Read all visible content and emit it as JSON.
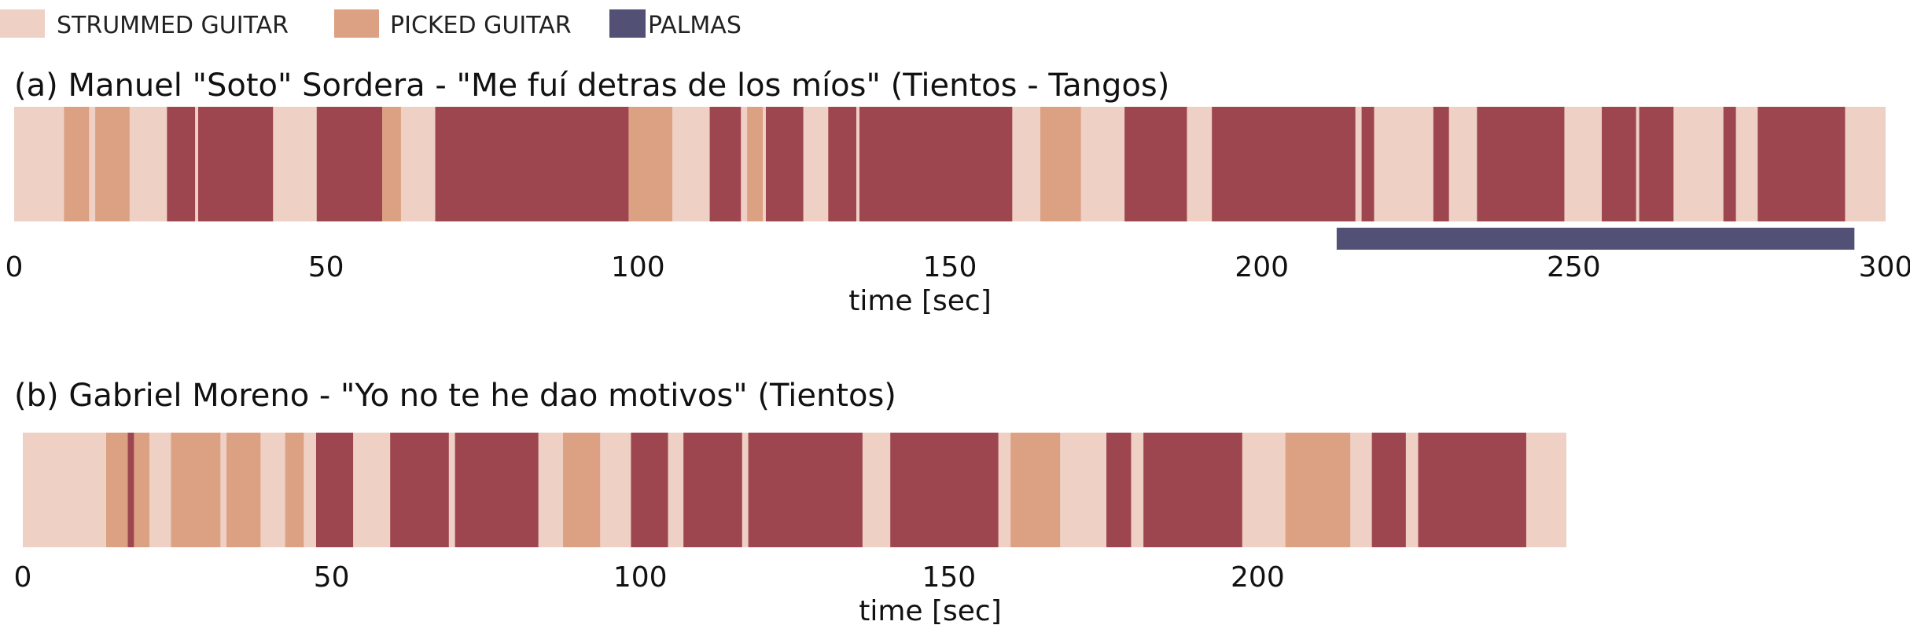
{
  "colors": {
    "strummed": "#EED0C4",
    "picked": "#DCA082",
    "sung": "#9E4650",
    "palmas": "#535075"
  },
  "legend": [
    {
      "key": "strummed",
      "label": "STRUMMED GUITAR"
    },
    {
      "key": "picked",
      "label": "PICKED GUITAR"
    },
    {
      "key": "palmas",
      "label": "PALMAS"
    }
  ],
  "chart_data": [
    {
      "type": "timeline",
      "title": "(a) Manuel \"Soto\" Sordera - \"Me fuí detras de los míos\" (Tientos - Tangos)",
      "xlabel": "time [sec]",
      "xlim": [
        0,
        300
      ],
      "xticks": [
        0,
        50,
        100,
        150,
        200,
        250,
        300
      ],
      "background": {
        "type": "strummed",
        "start": 0,
        "end": 300
      },
      "segments": [
        {
          "type": "picked",
          "start": 8,
          "end": 12
        },
        {
          "type": "picked",
          "start": 13,
          "end": 18.5
        },
        {
          "type": "sung",
          "start": 24.5,
          "end": 29
        },
        {
          "type": "sung",
          "start": 29.5,
          "end": 41.5
        },
        {
          "type": "sung",
          "start": 48.5,
          "end": 59
        },
        {
          "type": "picked",
          "start": 59,
          "end": 62
        },
        {
          "type": "sung",
          "start": 67.5,
          "end": 98.5
        },
        {
          "type": "picked",
          "start": 98.5,
          "end": 105.5
        },
        {
          "type": "sung",
          "start": 111.5,
          "end": 116.5
        },
        {
          "type": "picked",
          "start": 117.5,
          "end": 120
        },
        {
          "type": "sung",
          "start": 120.5,
          "end": 126.5
        },
        {
          "type": "sung",
          "start": 130.5,
          "end": 135
        },
        {
          "type": "sung",
          "start": 135.5,
          "end": 160
        },
        {
          "type": "picked",
          "start": 164.5,
          "end": 171
        },
        {
          "type": "sung",
          "start": 178,
          "end": 188
        },
        {
          "type": "sung",
          "start": 192,
          "end": 215
        },
        {
          "type": "sung",
          "start": 216,
          "end": 218
        },
        {
          "type": "sung",
          "start": 227.5,
          "end": 230
        },
        {
          "type": "sung",
          "start": 234.5,
          "end": 248.5
        },
        {
          "type": "sung",
          "start": 254.5,
          "end": 260
        },
        {
          "type": "sung",
          "start": 260.5,
          "end": 266
        },
        {
          "type": "sung",
          "start": 274,
          "end": 276
        },
        {
          "type": "sung",
          "start": 279.5,
          "end": 293.5
        }
      ],
      "palmas": [
        {
          "start": 212,
          "end": 295
        }
      ]
    },
    {
      "type": "timeline",
      "title": "(b) Gabriel Moreno - \"Yo no te he dao motivos\" (Tientos)",
      "xlabel": "time [sec]",
      "xlim": [
        0,
        250
      ],
      "xticks": [
        0,
        50,
        100,
        150,
        200
      ],
      "background": {
        "type": "strummed",
        "start": 0,
        "end": 250
      },
      "segments": [
        {
          "type": "picked",
          "start": 13.5,
          "end": 20.5
        },
        {
          "type": "sung",
          "start": 17,
          "end": 18
        },
        {
          "type": "picked",
          "start": 24,
          "end": 32
        },
        {
          "type": "picked",
          "start": 33,
          "end": 38.5
        },
        {
          "type": "picked",
          "start": 42.5,
          "end": 45.5
        },
        {
          "type": "sung",
          "start": 47.5,
          "end": 53.5
        },
        {
          "type": "sung",
          "start": 59.5,
          "end": 69
        },
        {
          "type": "sung",
          "start": 70,
          "end": 83.5
        },
        {
          "type": "picked",
          "start": 87.5,
          "end": 93.5
        },
        {
          "type": "sung",
          "start": 98.5,
          "end": 104.5
        },
        {
          "type": "sung",
          "start": 107,
          "end": 116.5
        },
        {
          "type": "sung",
          "start": 117.5,
          "end": 136
        },
        {
          "type": "sung",
          "start": 140.5,
          "end": 158
        },
        {
          "type": "picked",
          "start": 160,
          "end": 168
        },
        {
          "type": "sung",
          "start": 175.5,
          "end": 179.5
        },
        {
          "type": "sung",
          "start": 181.5,
          "end": 197.5
        },
        {
          "type": "picked",
          "start": 204.5,
          "end": 215
        },
        {
          "type": "sung",
          "start": 218.5,
          "end": 224
        },
        {
          "type": "sung",
          "start": 226,
          "end": 243.5
        }
      ],
      "palmas": []
    }
  ]
}
